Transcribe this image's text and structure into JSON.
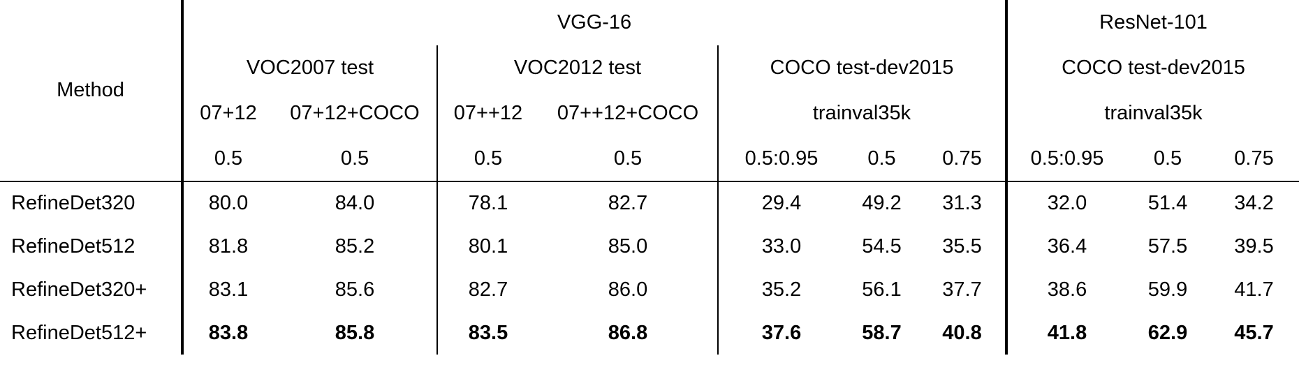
{
  "table": {
    "method_header": "Method",
    "backbones": [
      {
        "name": "VGG-16",
        "datasets": [
          {
            "name": "VOC2007 test",
            "trainsets": [
              {
                "name": "07+12",
                "metrics": [
                  "0.5"
                ]
              },
              {
                "name": "07+12+COCO",
                "metrics": [
                  "0.5"
                ]
              }
            ]
          },
          {
            "name": "VOC2012 test",
            "trainsets": [
              {
                "name": "07++12",
                "metrics": [
                  "0.5"
                ]
              },
              {
                "name": "07++12+COCO",
                "metrics": [
                  "0.5"
                ]
              }
            ]
          },
          {
            "name": "COCO test-dev2015",
            "trainsets": [
              {
                "name": "trainval35k",
                "metrics": [
                  "0.5:0.95",
                  "0.5",
                  "0.75"
                ]
              }
            ]
          }
        ]
      },
      {
        "name": "ResNet-101",
        "datasets": [
          {
            "name": "COCO test-dev2015",
            "trainsets": [
              {
                "name": "trainval35k",
                "metrics": [
                  "0.5:0.95",
                  "0.5",
                  "0.75"
                ]
              }
            ]
          }
        ]
      }
    ],
    "rows": [
      {
        "method": "RefineDet320",
        "bold": false,
        "values": [
          "80.0",
          "84.0",
          "78.1",
          "82.7",
          "29.4",
          "49.2",
          "31.3",
          "32.0",
          "51.4",
          "34.2"
        ]
      },
      {
        "method": "RefineDet512",
        "bold": false,
        "values": [
          "81.8",
          "85.2",
          "80.1",
          "85.0",
          "33.0",
          "54.5",
          "35.5",
          "36.4",
          "57.5",
          "39.5"
        ]
      },
      {
        "method": "RefineDet320+",
        "bold": false,
        "values": [
          "83.1",
          "85.6",
          "82.7",
          "86.0",
          "35.2",
          "56.1",
          "37.7",
          "38.6",
          "59.9",
          "41.7"
        ]
      },
      {
        "method": "RefineDet512+",
        "bold": true,
        "values": [
          "83.8",
          "85.8",
          "83.5",
          "86.8",
          "37.6",
          "58.7",
          "40.8",
          "41.8",
          "62.9",
          "45.7"
        ]
      }
    ]
  }
}
